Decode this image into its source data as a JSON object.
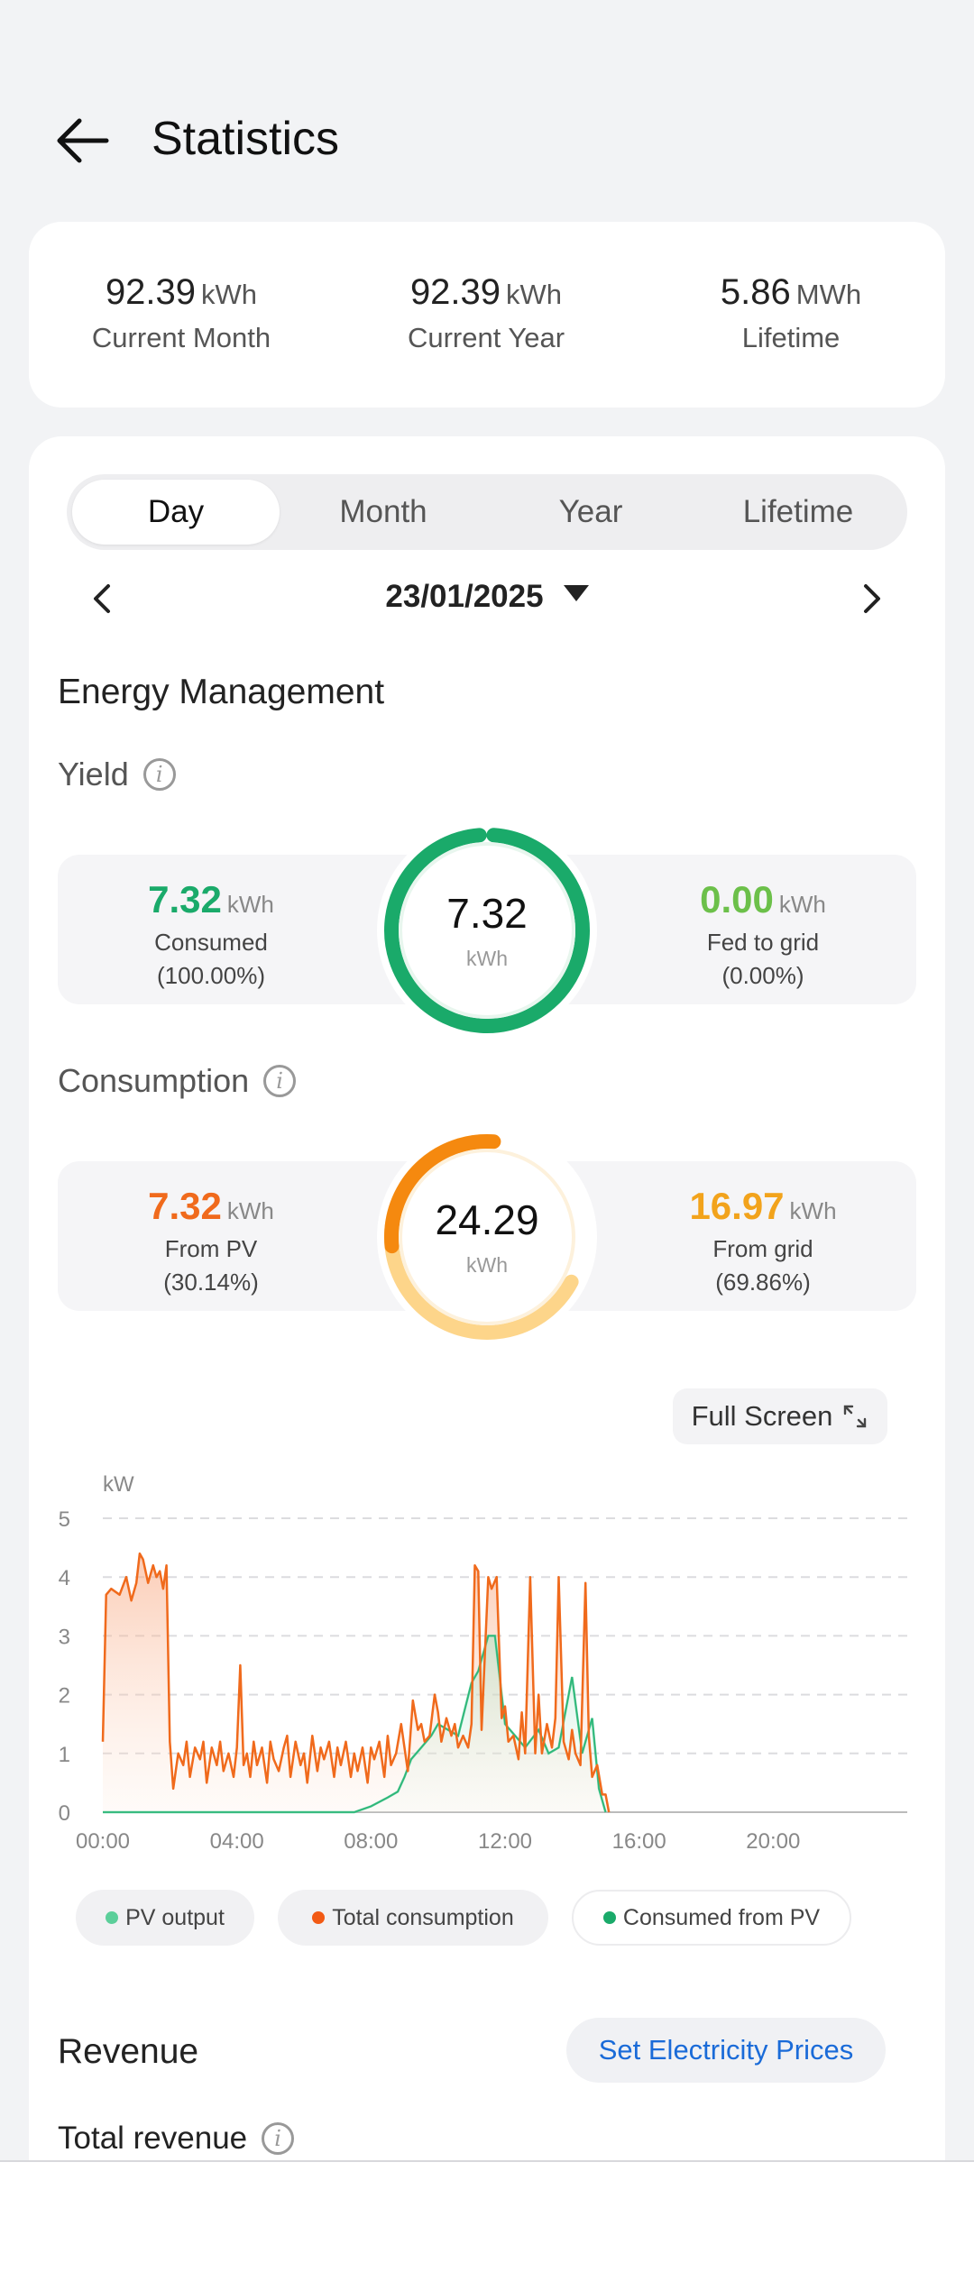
{
  "header": {
    "title": "Statistics"
  },
  "summary": [
    {
      "value": "92.39",
      "unit": "kWh",
      "label": "Current Month"
    },
    {
      "value": "92.39",
      "unit": "kWh",
      "label": "Current Year"
    },
    {
      "value": "5.86",
      "unit": "MWh",
      "label": "Lifetime"
    }
  ],
  "tabs": [
    {
      "label": "Day",
      "active": true
    },
    {
      "label": "Month",
      "active": false
    },
    {
      "label": "Year",
      "active": false
    },
    {
      "label": "Lifetime",
      "active": false
    }
  ],
  "date": "23/01/2025",
  "energy_management": {
    "title": "Energy Management"
  },
  "yield": {
    "title": "Yield",
    "total": "7.32",
    "unit": "kWh",
    "left": {
      "value": "7.32",
      "unit": "kWh",
      "label": "Consumed",
      "pct": "(100.00%)",
      "color": "#1aaa6a"
    },
    "right": {
      "value": "0.00",
      "unit": "kWh",
      "label": "Fed to grid",
      "pct": "(0.00%)",
      "color": "#6cc04a"
    }
  },
  "consumption": {
    "title": "Consumption",
    "total": "24.29",
    "unit": "kWh",
    "left": {
      "value": "7.32",
      "unit": "kWh",
      "label": "From PV",
      "pct": "(30.14%)",
      "color": "#f06a1c"
    },
    "right": {
      "value": "16.97",
      "unit": "kWh",
      "label": "From grid",
      "pct": "(69.86%)",
      "color": "#f2a31c"
    }
  },
  "fullscreen_label": "Full Screen",
  "chart_data": {
    "type": "line",
    "ylabel": "kW",
    "ylim": [
      0,
      5
    ],
    "yticks": [
      "0",
      "1",
      "2",
      "3",
      "4",
      "5"
    ],
    "xlim": [
      0,
      24
    ],
    "xticks": [
      "00:00",
      "04:00",
      "08:00",
      "12:00",
      "16:00",
      "20:00"
    ],
    "series": [
      {
        "name": "Total consumption",
        "color": "#f06a1c",
        "x": [
          0.0,
          0.1,
          0.25,
          0.5,
          0.7,
          0.85,
          1.0,
          1.1,
          1.2,
          1.35,
          1.5,
          1.6,
          1.7,
          1.8,
          1.9,
          2.0,
          2.1,
          2.25,
          2.4,
          2.5,
          2.6,
          2.75,
          2.9,
          3.0,
          3.1,
          3.25,
          3.4,
          3.5,
          3.6,
          3.75,
          3.9,
          4.0,
          4.1,
          4.2,
          4.3,
          4.4,
          4.5,
          4.6,
          4.75,
          4.9,
          5.0,
          5.1,
          5.25,
          5.4,
          5.5,
          5.6,
          5.75,
          5.9,
          6.0,
          6.1,
          6.25,
          6.4,
          6.5,
          6.6,
          6.75,
          6.9,
          7.0,
          7.1,
          7.25,
          7.4,
          7.5,
          7.6,
          7.75,
          7.9,
          8.0,
          8.1,
          8.25,
          8.4,
          8.5,
          8.6,
          8.75,
          8.9,
          9.0,
          9.1,
          9.25,
          9.4,
          9.5,
          9.6,
          9.75,
          9.9,
          10.0,
          10.1,
          10.25,
          10.4,
          10.5,
          10.6,
          10.75,
          10.9,
          11.0,
          11.1,
          11.2,
          11.3,
          11.5,
          11.6,
          11.75,
          11.9,
          12.0,
          12.1,
          12.25,
          12.4,
          12.5,
          12.6,
          12.75,
          12.9,
          13.0,
          13.1,
          13.25,
          13.4,
          13.5,
          13.6,
          13.75,
          13.9,
          14.0,
          14.1,
          14.25,
          14.4,
          14.5,
          14.6,
          14.75,
          14.9,
          15.0,
          15.1
        ],
        "y": [
          1.2,
          3.7,
          3.8,
          3.7,
          4.0,
          3.6,
          3.9,
          4.4,
          4.3,
          3.9,
          4.2,
          4.0,
          4.1,
          3.8,
          4.2,
          1.2,
          0.4,
          1.0,
          0.8,
          1.2,
          0.6,
          1.1,
          0.9,
          1.2,
          0.5,
          1.1,
          0.8,
          1.2,
          0.7,
          1.0,
          0.6,
          1.1,
          2.5,
          0.8,
          1.0,
          0.6,
          1.2,
          0.8,
          1.1,
          0.5,
          1.2,
          0.9,
          0.7,
          1.1,
          1.3,
          0.6,
          1.2,
          0.8,
          1.0,
          0.5,
          1.3,
          0.7,
          1.1,
          0.9,
          1.2,
          0.6,
          1.1,
          0.8,
          1.2,
          0.6,
          1.0,
          0.7,
          1.1,
          0.5,
          1.1,
          0.9,
          1.2,
          0.6,
          1.3,
          0.8,
          1.0,
          1.5,
          1.1,
          0.7,
          1.9,
          1.4,
          1.5,
          1.2,
          1.3,
          2.0,
          1.7,
          1.2,
          1.6,
          1.3,
          1.5,
          1.1,
          1.3,
          1.1,
          1.5,
          4.2,
          4.1,
          1.4,
          4.0,
          3.8,
          4.0,
          1.6,
          1.8,
          1.2,
          1.3,
          0.9,
          1.7,
          1.0,
          4.0,
          1.0,
          2.0,
          1.0,
          1.5,
          1.1,
          1.6,
          4.0,
          1.2,
          0.9,
          1.4,
          1.0,
          0.8,
          3.9,
          1.3,
          0.6,
          0.8,
          0.3,
          0.3,
          0.0
        ]
      },
      {
        "name": "PV output",
        "color": "#5ccf9a",
        "x": [
          0,
          7.5,
          8.0,
          8.5,
          8.8,
          9.0,
          9.2,
          9.5,
          9.8,
          10.0,
          10.3,
          10.6,
          11.0,
          11.2,
          11.5,
          11.7,
          12.0,
          12.3,
          12.6,
          13.0,
          13.3,
          13.6,
          14.0,
          14.3,
          14.6,
          14.8,
          15.0
        ],
        "y": [
          0,
          0,
          0.1,
          0.25,
          0.35,
          0.6,
          0.9,
          1.1,
          1.3,
          1.5,
          1.4,
          1.3,
          2.2,
          2.4,
          3.0,
          3.0,
          1.5,
          1.3,
          1.1,
          1.4,
          1.0,
          1.1,
          2.3,
          1.0,
          1.6,
          0.4,
          0
        ]
      },
      {
        "name": "Consumed from PV",
        "color": "#1aaa6a",
        "x": [
          0,
          7.5,
          8.0,
          8.5,
          8.8,
          9.0,
          9.2,
          9.5,
          9.8,
          10.0,
          10.3,
          10.6,
          11.0,
          11.2,
          11.5,
          11.7,
          12.0,
          12.3,
          12.6,
          13.0,
          13.3,
          13.6,
          14.0,
          14.3,
          14.6,
          14.8,
          15.0
        ],
        "y": [
          0,
          0,
          0.1,
          0.25,
          0.35,
          0.6,
          0.9,
          1.1,
          1.3,
          1.5,
          1.4,
          1.3,
          2.2,
          2.4,
          3.0,
          3.0,
          1.5,
          1.3,
          1.1,
          1.4,
          1.0,
          1.1,
          2.3,
          1.0,
          1.6,
          0.4,
          0
        ]
      }
    ],
    "legend": [
      {
        "label": "PV output",
        "color": "#5ccf9a"
      },
      {
        "label": "Total consumption",
        "color": "#f25a14"
      },
      {
        "label": "Consumed from PV",
        "color": "#1aaa6a"
      }
    ],
    "legend_position": "bottom",
    "grid": true
  },
  "revenue": {
    "title": "Revenue",
    "set_prices_label": "Set Electricity Prices",
    "total_label": "Total revenue"
  }
}
